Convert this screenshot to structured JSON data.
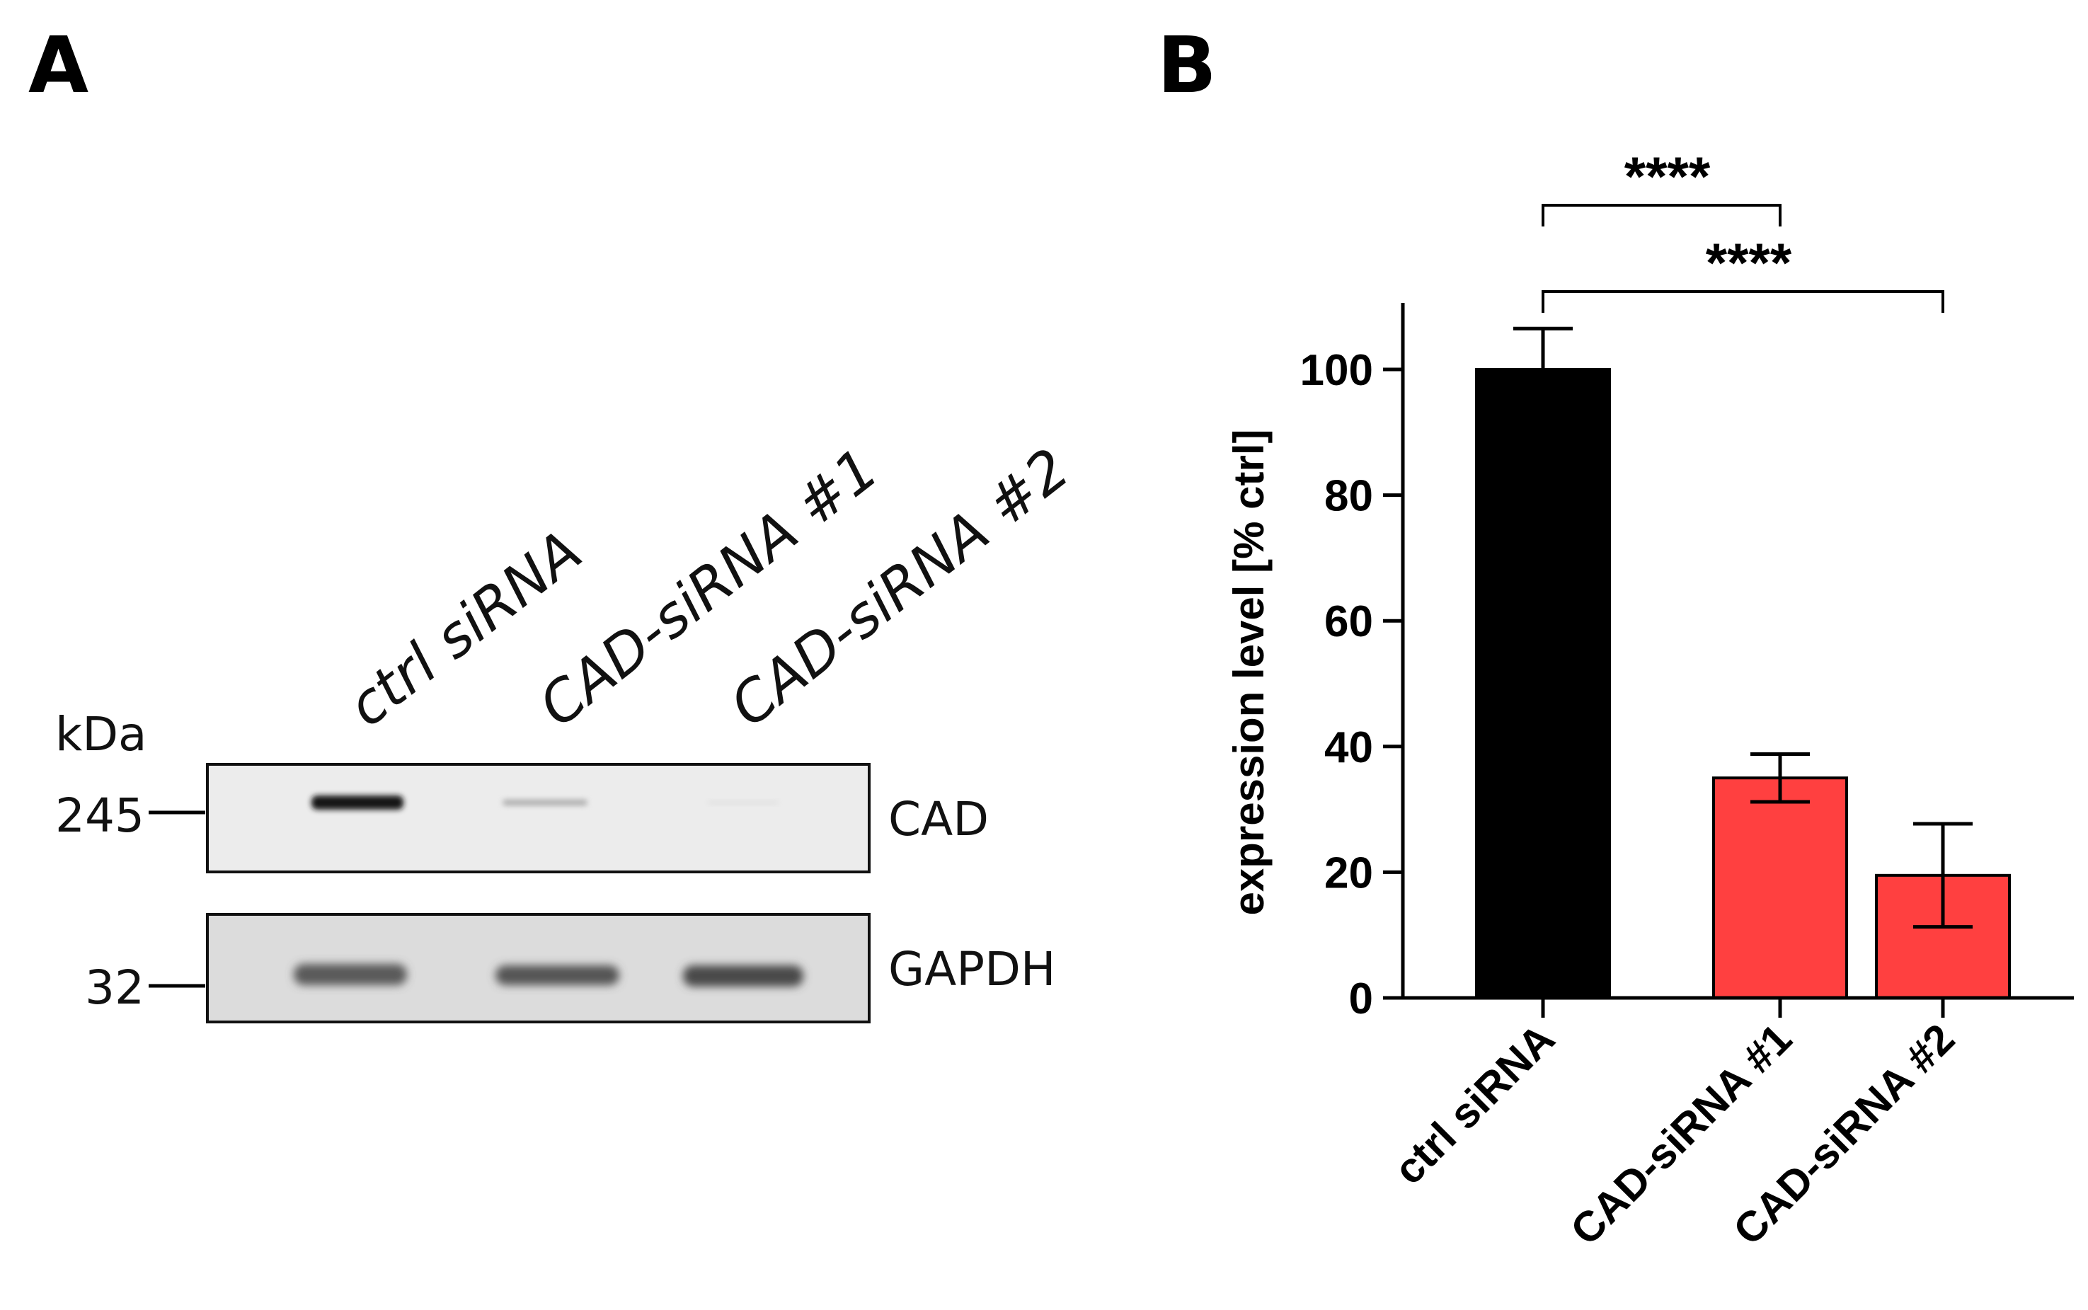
{
  "panel_a": {
    "letter": "A",
    "lanes": [
      "ctrl siRNA",
      "CAD-siRNA #1",
      "CAD-siRNA #2"
    ],
    "unit_label": "kDa",
    "markers": [
      "245",
      "32"
    ],
    "bands": [
      "CAD",
      "GAPDH"
    ]
  },
  "panel_b": {
    "letter": "B",
    "chart_data": {
      "type": "bar",
      "categories": [
        "ctrl siRNA",
        "CAD-siRNA #1",
        "CAD-siRNA #2"
      ],
      "values": [
        100,
        35,
        19.5
      ],
      "errors": [
        6.5,
        3.8,
        8.2
      ],
      "colors": [
        "#000000",
        "#ff4040",
        "#ff4040"
      ],
      "ylabel": "expression level [% ctrl]",
      "ylim": [
        0,
        110
      ],
      "yticks": [
        "0",
        "20",
        "40",
        "60",
        "80",
        "100"
      ],
      "significance": [
        {
          "from": "ctrl siRNA",
          "to": "CAD-siRNA #1",
          "label": "****"
        },
        {
          "from": "ctrl siRNA",
          "to": "CAD-siRNA #2",
          "label": "****"
        }
      ]
    }
  }
}
